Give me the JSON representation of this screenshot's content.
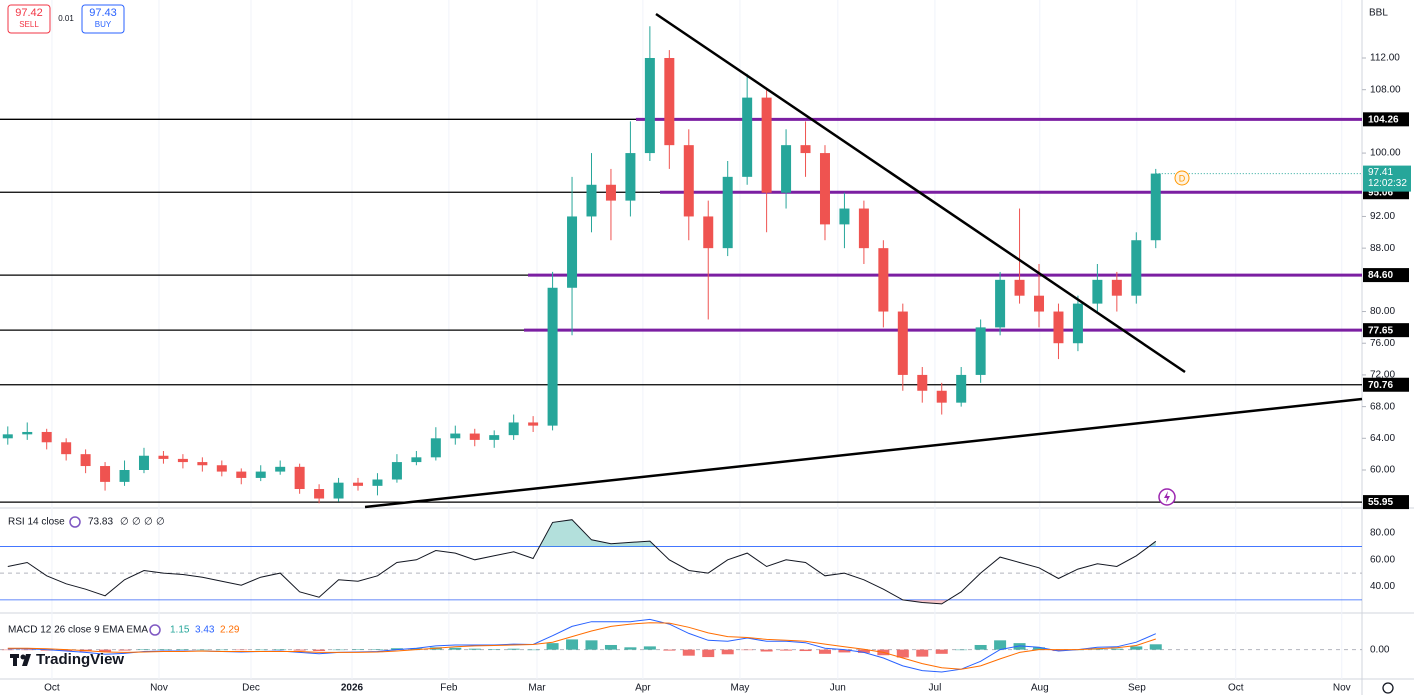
{
  "chart_data": {
    "type": "candlestick",
    "symbol": "BBL",
    "interval": "D",
    "countdown": "12:02:32",
    "brand": "TradingView",
    "sell": {
      "price": 97.42,
      "label": "SELL"
    },
    "spread": 0.01,
    "buy": {
      "price": 97.43,
      "label": "BUY"
    },
    "up_color": "#26a69a",
    "down_color": "#ef5350",
    "open": [
      64.0,
      64.5,
      64.8,
      63.5,
      62,
      60.5,
      58.5,
      60,
      61.8,
      61.4,
      61,
      60.6,
      59.8,
      59,
      59.8,
      60.4,
      57.6,
      56.4,
      58.4,
      58,
      58.8,
      61,
      61.6,
      64,
      64.6,
      63.8,
      64.4,
      66,
      65.6,
      83,
      92,
      96,
      94,
      100,
      112,
      101,
      92,
      88,
      97,
      107,
      95,
      101,
      100,
      91,
      93,
      88,
      80,
      72,
      70,
      68.5,
      72,
      78,
      84,
      82,
      80,
      76,
      81,
      84,
      82,
      89
    ],
    "high": [
      65.5,
      66,
      65.2,
      64,
      62.6,
      61,
      61.2,
      62.8,
      62.4,
      62,
      61.6,
      61.2,
      60.2,
      60.6,
      61.2,
      60.8,
      58.2,
      59,
      59,
      59.6,
      62,
      62.4,
      65.4,
      65.6,
      65.2,
      65,
      67,
      66.8,
      85,
      97,
      100,
      98,
      104,
      116,
      113,
      103,
      94,
      99,
      110,
      108,
      103,
      104,
      101,
      95,
      94,
      89,
      81,
      73,
      71,
      73,
      79,
      85,
      93,
      86,
      81,
      82,
      86,
      85,
      90,
      98
    ],
    "low": [
      63.2,
      63.8,
      62.6,
      61.2,
      59.6,
      57.4,
      58,
      59.6,
      60.8,
      60.2,
      59.8,
      59.2,
      58.2,
      58.6,
      59.4,
      57,
      55.8,
      56,
      57.4,
      56.8,
      58.4,
      60.6,
      61.2,
      63.2,
      63,
      62.8,
      63.8,
      64.8,
      65,
      77,
      90,
      89,
      92,
      99,
      98,
      89,
      79,
      87,
      96,
      90,
      93,
      97,
      89,
      88,
      86,
      78,
      70,
      68.5,
      67,
      68,
      71,
      77,
      81,
      78,
      74,
      75,
      80,
      80,
      81,
      88
    ],
    "close": [
      64.5,
      64.8,
      63.5,
      62,
      60.5,
      58.5,
      60,
      61.8,
      61.4,
      61,
      60.6,
      59.8,
      59,
      59.8,
      60.4,
      57.6,
      56.4,
      58.4,
      58,
      58.8,
      61,
      61.6,
      64,
      64.6,
      63.8,
      64.4,
      66,
      65.6,
      83,
      92,
      96,
      94,
      100,
      112,
      101,
      92,
      88,
      97,
      107,
      95,
      101,
      100,
      91,
      93,
      88,
      80,
      72,
      70,
      68.5,
      72,
      78,
      84,
      82,
      80,
      76,
      81,
      84,
      82,
      89,
      97.41
    ],
    "xlim": [
      -0.4,
      69.6
    ],
    "xticks": [
      {
        "value": 2.27,
        "label": "Oct"
      },
      {
        "value": 7.77,
        "label": "Nov"
      },
      {
        "value": 12.5,
        "label": "Dec"
      },
      {
        "value": 17.69,
        "label": "2026"
      },
      {
        "value": 22.67,
        "label": "Feb"
      },
      {
        "value": 27.2,
        "label": "Mar"
      },
      {
        "value": 32.64,
        "label": "Apr"
      },
      {
        "value": 37.63,
        "label": "May"
      },
      {
        "value": 42.66,
        "label": "Jun"
      },
      {
        "value": 47.65,
        "label": "Jul"
      },
      {
        "value": 53.04,
        "label": "Aug"
      },
      {
        "value": 58.03,
        "label": "Sep"
      },
      {
        "value": 63.11,
        "label": "Oct"
      },
      {
        "value": 68.56,
        "label": "Nov"
      }
    ],
    "ylim": [
      55.33,
      119.32
    ],
    "yticks": [
      {
        "value": 60,
        "label": "60.00"
      },
      {
        "value": 64,
        "label": "64.00"
      },
      {
        "value": 68,
        "label": "68.00"
      },
      {
        "value": 72,
        "label": "72.00"
      },
      {
        "value": 76,
        "label": "76.00"
      },
      {
        "value": 80,
        "label": "80.00"
      },
      {
        "value": 88,
        "label": "88.00"
      },
      {
        "value": 92,
        "label": "92.00"
      },
      {
        "value": 100,
        "label": "100.00"
      },
      {
        "value": 108,
        "label": "108.00"
      },
      {
        "value": 112,
        "label": "112.00"
      }
    ],
    "levels": [
      {
        "value": 104.26,
        "label": "104.26"
      },
      {
        "value": 95.06,
        "label": "95.06"
      },
      {
        "value": 84.6,
        "label": "84.60"
      },
      {
        "value": 77.65,
        "label": "77.65"
      },
      {
        "value": 70.76,
        "label": "70.76"
      },
      {
        "value": 55.95,
        "label": "55.95"
      }
    ],
    "level_color": "#000000",
    "zone_color": "#7b1fa2",
    "rsi": {
      "title": "RSI 14 close",
      "extras": [
        "∅",
        "∅",
        "∅",
        "∅"
      ],
      "color": "#131722",
      "band_color": "#2962ff",
      "values": [
        55,
        58,
        48,
        42,
        38,
        33,
        45,
        52,
        50,
        49,
        47,
        44,
        41,
        47,
        50,
        36,
        32,
        45,
        44,
        48,
        58,
        60,
        67,
        65,
        60,
        63,
        66,
        61,
        88,
        90,
        75,
        72,
        73,
        74,
        60,
        52,
        50,
        60,
        65,
        55,
        60,
        58,
        48,
        50,
        45,
        38,
        30,
        28,
        27,
        36,
        50,
        62,
        58,
        54,
        46,
        53,
        57,
        55,
        63,
        73.83
      ],
      "bands": [
        70,
        30
      ],
      "mid": 50,
      "ylim": [
        20.9,
        95.8
      ],
      "yticks": [
        {
          "value": 80,
          "label": "80.00"
        },
        {
          "value": 60,
          "label": "60.00"
        },
        {
          "value": 40,
          "label": "40.00"
        }
      ]
    },
    "macd": {
      "title": "MACD 12 26 close 9 EMA EMA",
      "macd_color": "#2962ff",
      "signal_color": "#ff6d00",
      "hist_up_color": "#26a69a",
      "hist_down_color": "#ef5350",
      "macd": [
        0.2,
        0.2,
        0,
        -0.3,
        -0.6,
        -1,
        -0.8,
        -0.4,
        -0.3,
        -0.3,
        -0.3,
        -0.4,
        -0.5,
        -0.4,
        -0.3,
        -0.6,
        -0.9,
        -0.6,
        -0.5,
        -0.4,
        0,
        0.3,
        0.8,
        1,
        1,
        1,
        1.2,
        1.1,
        3,
        5,
        6,
        6,
        6,
        6.5,
        5.5,
        3.5,
        2,
        1.8,
        2.5,
        1.8,
        1.8,
        1.5,
        0.3,
        0,
        -0.6,
        -1.8,
        -3.5,
        -4.5,
        -4.8,
        -4.2,
        -2.5,
        0,
        0.8,
        0.5,
        -0.3,
        0,
        0.5,
        0.6,
        1.6,
        3.43
      ],
      "signal": [
        0.3,
        0.3,
        0.2,
        0,
        -0.2,
        -0.5,
        -0.6,
        -0.5,
        -0.4,
        -0.4,
        -0.3,
        -0.4,
        -0.4,
        -0.4,
        -0.4,
        -0.4,
        -0.6,
        -0.6,
        -0.6,
        -0.5,
        -0.3,
        0,
        0.3,
        0.6,
        0.8,
        0.9,
        1,
        1.1,
        1.6,
        2.8,
        4,
        5,
        5.5,
        5.8,
        5.7,
        4.8,
        3.6,
        2.8,
        2.6,
        2.2,
        2,
        1.8,
        1.2,
        0.6,
        0.1,
        -0.6,
        -1.8,
        -3,
        -3.9,
        -4.2,
        -3.5,
        -2,
        -0.6,
        0,
        0,
        0,
        0.2,
        0.4,
        0.9,
        2.29
      ],
      "hist": [
        -0.1,
        -0.1,
        -0.2,
        -0.3,
        -0.4,
        -0.5,
        -0.2,
        0.1,
        0.1,
        0.1,
        0,
        0,
        -0.1,
        0,
        0.1,
        -0.2,
        -0.3,
        0,
        0.1,
        0.1,
        0.3,
        0.3,
        0.5,
        0.4,
        0.2,
        0.1,
        0.2,
        0,
        1.4,
        2.2,
        2,
        1,
        0.5,
        0.7,
        -0.2,
        -1.3,
        -1.6,
        -1,
        -0.1,
        -0.4,
        -0.2,
        -0.3,
        -0.9,
        -0.6,
        -0.7,
        -1.2,
        -1.7,
        -1.5,
        -0.9,
        0,
        1,
        2,
        1.4,
        0.5,
        -0.3,
        0,
        0.3,
        0.2,
        0.7,
        1.15
      ],
      "ylim": [
        -6.1,
        7.45
      ],
      "yticks": [
        {
          "value": 0,
          "label": "0.00"
        }
      ]
    }
  }
}
